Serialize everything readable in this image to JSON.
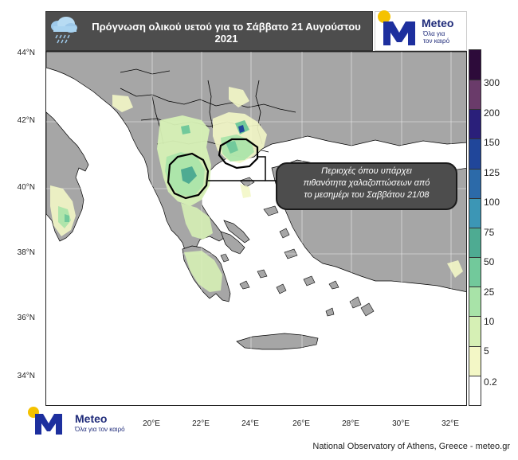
{
  "header": {
    "title": "Πρόγνωση ολικού υετού για το Σάββατο 21 Αυγούστου 2021"
  },
  "logo": {
    "brand": "Meteo",
    "tagline_line1": "Όλα για",
    "tagline_line2": "τον καιρό",
    "bottom_tagline": "Όλα για τον καιρό"
  },
  "map": {
    "latitude_labels": [
      "44°N",
      "42°N",
      "40°N",
      "38°N",
      "36°N",
      "34°N"
    ],
    "longitude_labels": [
      "20°E",
      "22°E",
      "24°E",
      "26°E",
      "28°E",
      "30°E",
      "32°E"
    ],
    "colors": {
      "sea": "#ffffff",
      "land": "#a6a6a6",
      "border": "#000000"
    }
  },
  "legend": {
    "title": "",
    "thresholds": [
      "0.2",
      "5",
      "10",
      "25",
      "50",
      "75",
      "100",
      "125",
      "150",
      "200",
      "300"
    ],
    "colors": [
      "#ffffff",
      "#f3f7c6",
      "#d6f0b5",
      "#a8e3a8",
      "#72c99b",
      "#4eab92",
      "#3c96b5",
      "#2c6aa9",
      "#20469a",
      "#2a1f7a",
      "#6a3b6a",
      "#2d0b3a"
    ]
  },
  "callout": {
    "text_line1": "Περιοχές όπου υπάρχει",
    "text_line2": "πιθανότητα χαλαζοπτώσεων από",
    "text_line3": "το μεσημέρι του Σαββάτου 21/08"
  },
  "footer": {
    "credit": "National Observatory of Athens, Greece - meteo.gr"
  }
}
